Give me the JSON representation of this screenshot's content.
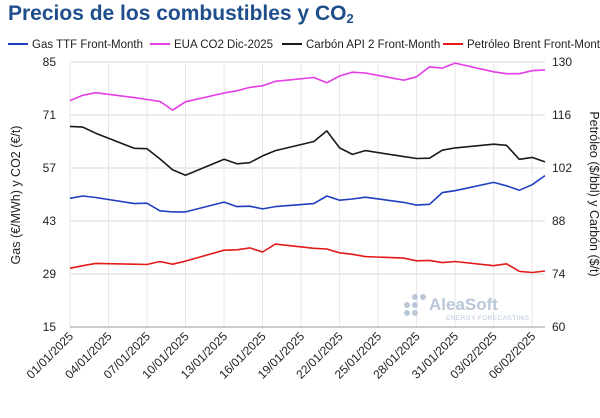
{
  "title": {
    "text": "Precios de los combustibles y CO",
    "sub": "2"
  },
  "watermark": {
    "brand": "AleaSoft",
    "tagline": "ENERGY FORECASTING"
  },
  "chart_data": {
    "type": "line",
    "x": [
      "01/01/2025",
      "02/01/2025",
      "03/01/2025",
      "06/01/2025",
      "07/01/2025",
      "08/01/2025",
      "09/01/2025",
      "10/01/2025",
      "13/01/2025",
      "14/01/2025",
      "15/01/2025",
      "16/01/2025",
      "17/01/2025",
      "20/01/2025",
      "21/01/2025",
      "22/01/2025",
      "23/01/2025",
      "24/01/2025",
      "27/01/2025",
      "28/01/2025",
      "29/01/2025",
      "30/01/2025",
      "31/01/2025",
      "03/02/2025",
      "04/02/2025",
      "05/02/2025",
      "06/02/2025",
      "07/02/2025"
    ],
    "xticks": [
      "01/01/2025",
      "04/01/2025",
      "07/01/2025",
      "10/01/2025",
      "13/01/2025",
      "16/01/2025",
      "19/01/2025",
      "22/01/2025",
      "25/01/2025",
      "28/01/2025",
      "31/01/2025",
      "03/02/2025",
      "06/02/2025"
    ],
    "xlim": [
      "01/01/2025",
      "07/02/2025"
    ],
    "ylabel_left": "Gas (€/MWh) y CO2 (€/t)",
    "ylabel_right": "Petróleo ($/bbl) y Carbón ($/t)",
    "ylim_left": [
      15,
      85
    ],
    "yticks_left": [
      15,
      29,
      43,
      57,
      71,
      85
    ],
    "ylim_right": [
      60,
      130
    ],
    "yticks_right": [
      60,
      74,
      88,
      102,
      116,
      130
    ],
    "grid": true,
    "legend_position": "top",
    "series": [
      {
        "name": "Gas TTF Front-Month",
        "axis": "left",
        "color": "#1f3fbf",
        "values": [
          49.0,
          49.6,
          49.2,
          47.6,
          47.7,
          45.7,
          45.4,
          45.4,
          48.0,
          46.8,
          46.9,
          46.2,
          46.8,
          47.6,
          49.6,
          48.5,
          48.8,
          49.3,
          47.9,
          47.2,
          47.4,
          50.5,
          51.0,
          53.2,
          52.3,
          51.1,
          52.6,
          55.0
        ]
      },
      {
        "name": "EUA CO2 Dic-2025",
        "axis": "left",
        "color": "#e53ce5",
        "values": [
          74.8,
          76.2,
          76.9,
          75.6,
          75.1,
          74.6,
          72.3,
          74.5,
          76.8,
          77.4,
          78.3,
          78.7,
          79.9,
          80.9,
          79.5,
          81.3,
          82.3,
          82.1,
          80.2,
          81.1,
          83.7,
          83.4,
          84.7,
          82.4,
          81.9,
          81.9,
          82.7,
          82.9
        ]
      },
      {
        "name": "Carbón API 2 Front-Month",
        "axis": "right",
        "color": "#1a1a1a",
        "values": [
          113.0,
          112.8,
          111.2,
          107.2,
          107.1,
          104.4,
          101.5,
          100.1,
          104.3,
          103.1,
          103.4,
          105.2,
          106.6,
          109.0,
          111.8,
          107.3,
          105.6,
          106.6,
          105.0,
          104.5,
          104.6,
          106.7,
          107.3,
          108.3,
          108.0,
          104.3,
          104.8,
          103.6
        ]
      },
      {
        "name": "Petróleo Brent Front-Month",
        "axis": "right",
        "color": "#e41a1a",
        "values": [
          75.5,
          76.2,
          76.8,
          76.6,
          76.5,
          77.3,
          76.6,
          77.4,
          80.3,
          80.4,
          80.9,
          79.8,
          81.9,
          80.8,
          80.6,
          79.6,
          79.2,
          78.6,
          78.2,
          77.5,
          77.6,
          77.0,
          77.3,
          76.2,
          76.7,
          74.7,
          74.4,
          74.8
        ]
      }
    ]
  }
}
